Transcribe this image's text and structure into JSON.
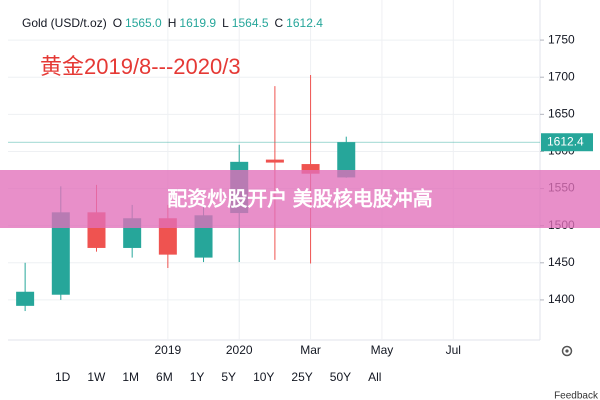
{
  "chart_data": {
    "type": "candlestick",
    "title": "Gold (USD/t.oz)",
    "ohlc_legend": [
      {
        "name": "O",
        "value": 1565,
        "label": "1565.0"
      },
      {
        "name": "H",
        "value": 1619.9,
        "label": "1619.9"
      },
      {
        "name": "L",
        "value": 1564.5,
        "label": "1564.5"
      },
      {
        "name": "C",
        "value": 1612.4,
        "label": "1612.4"
      }
    ],
    "annotation": "黄金2019/8---2020/3",
    "watermark": "配资炒股开户 美股核电股冲高",
    "x": [
      0,
      1,
      2,
      3,
      4,
      5,
      6,
      7,
      8,
      9
    ],
    "open": [
      1392,
      1407,
      1518,
      1470,
      1510,
      1457,
      1517,
      1589,
      1583,
      1565
    ],
    "high": [
      1450,
      1553,
      1555,
      1528,
      1528,
      1528,
      1609,
      1688,
      1703,
      1619.9
    ],
    "low": [
      1385,
      1400,
      1465,
      1457,
      1443,
      1451,
      1451,
      1454,
      1449,
      1564.5
    ],
    "close": [
      1411,
      1518,
      1470,
      1510,
      1461,
      1514,
      1586,
      1585,
      1570,
      1612.4
    ],
    "up_color": "#26a69a",
    "down_color": "#ef5350",
    "xlim": [
      -0.48,
      14.43
    ],
    "xticks": [
      {
        "value": 4,
        "label": "2019"
      },
      {
        "value": 6,
        "label": "2020"
      },
      {
        "value": 8,
        "label": "Mar"
      },
      {
        "value": 10,
        "label": "May"
      },
      {
        "value": 12,
        "label": "Jul"
      }
    ],
    "ylim": [
      1346,
      1804
    ],
    "yticks": [
      1400,
      1450,
      1500,
      1550,
      1600,
      1650,
      1700,
      1750
    ],
    "grid": true,
    "range_buttons": [
      "1D",
      "1W",
      "1M",
      "6M",
      "1Y",
      "5Y",
      "10Y",
      "25Y",
      "50Y",
      "All"
    ],
    "feedback": "Feedback"
  }
}
